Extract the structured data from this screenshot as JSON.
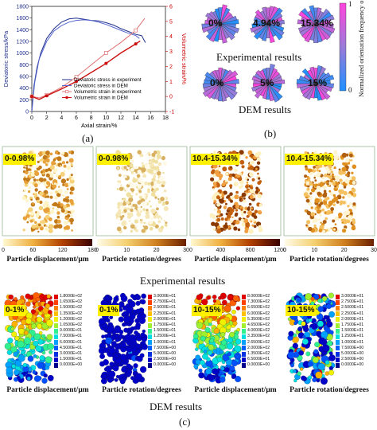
{
  "chart_data": {
    "type": "line",
    "xlabel": "Axial strain/%",
    "ylabel_left": "Deviatoric stress/kPa",
    "ylabel_right": "Volumetric strain/%",
    "xlim": [
      0,
      18
    ],
    "ylim_left": [
      0,
      1800
    ],
    "ylim_right": [
      -1,
      6
    ],
    "x_ticks": [
      "0",
      "2",
      "4",
      "6",
      "8",
      "10",
      "12",
      "14",
      "16",
      "18"
    ],
    "y_left_ticks": [
      "0",
      "200",
      "400",
      "600",
      "800",
      "1000",
      "1200",
      "1400",
      "1600",
      "1800"
    ],
    "y_right_ticks": [
      "-1",
      "0",
      "1",
      "2",
      "3",
      "4",
      "5",
      "6"
    ],
    "series": [
      {
        "name": "Deviatoric stress in experiment",
        "axis": "left",
        "color": "#1f2f8f",
        "points": [
          [
            0,
            0
          ],
          [
            0.3,
            450
          ],
          [
            0.7,
            750
          ],
          [
            1.2,
            1000
          ],
          [
            2,
            1250
          ],
          [
            3,
            1420
          ],
          [
            4,
            1530
          ],
          [
            5,
            1585
          ],
          [
            6,
            1600
          ],
          [
            7,
            1580
          ],
          [
            8,
            1560
          ],
          [
            9,
            1550
          ],
          [
            10,
            1520
          ],
          [
            11,
            1480
          ],
          [
            12,
            1420
          ],
          [
            13,
            1370
          ],
          [
            14,
            1320
          ],
          [
            14.8,
            1300
          ],
          [
            15.3,
            1180
          ]
        ]
      },
      {
        "name": "Deviatoric stress in DEM",
        "axis": "left",
        "color": "#5566cc",
        "points": [
          [
            0,
            0
          ],
          [
            0.4,
            500
          ],
          [
            1,
            900
          ],
          [
            2,
            1200
          ],
          [
            3,
            1380
          ],
          [
            4,
            1470
          ],
          [
            5,
            1530
          ],
          [
            6,
            1560
          ],
          [
            7,
            1570
          ],
          [
            8,
            1560
          ],
          [
            9,
            1530
          ],
          [
            10,
            1490
          ],
          [
            11,
            1440
          ],
          [
            12,
            1390
          ],
          [
            13,
            1340
          ],
          [
            14,
            1300
          ],
          [
            14.5,
            1250
          ]
        ]
      },
      {
        "name": "Volumetric strain in experiment",
        "axis": "right",
        "color": "#e07070",
        "points": [
          [
            0,
            0
          ],
          [
            1,
            -0.1
          ],
          [
            2,
            0.1
          ],
          [
            4,
            0.6
          ],
          [
            6,
            1.3
          ],
          [
            8,
            2.1
          ],
          [
            10,
            2.9
          ],
          [
            12,
            3.6
          ],
          [
            14,
            4.4
          ],
          [
            15.2,
            5.2
          ]
        ]
      },
      {
        "name": "Volumetric strain in DEM",
        "axis": "right",
        "color": "#cc1111",
        "points": [
          [
            0,
            0
          ],
          [
            1,
            -0.2
          ],
          [
            2,
            0.05
          ],
          [
            4,
            0.5
          ],
          [
            6,
            1.0
          ],
          [
            8,
            1.6
          ],
          [
            10,
            2.2
          ],
          [
            12,
            2.9
          ],
          [
            14,
            3.5
          ],
          [
            14.6,
            3.7
          ]
        ]
      }
    ]
  },
  "panel_b": {
    "exp_labels": [
      "0%",
      "4.94%",
      "15.34%"
    ],
    "dem_labels": [
      "0%",
      "5%",
      "15%"
    ],
    "exp_title": "Experimental results",
    "dem_title": "DEM results",
    "colorbar_top": "1",
    "colorbar_bottom": "0",
    "colorbar_label": "Normalized orientation frequency of branch vectors"
  },
  "panel_labels": {
    "a": "(a)",
    "b": "(b)",
    "c": "(c)"
  },
  "exp_row": {
    "tiles": [
      {
        "pct": "0-0.98%"
      },
      {
        "pct": "0-0.98%"
      },
      {
        "pct": "10.4-15.34%"
      },
      {
        "pct": "10.4-15.34%"
      }
    ],
    "bars": [
      {
        "ticks": [
          "0",
          "60",
          "120",
          "180"
        ],
        "label": "Particle displacement/μm"
      },
      {
        "ticks": [
          "0",
          "10",
          "20",
          "30"
        ],
        "label": "Particle rotation/degrees"
      },
      {
        "ticks": [
          "0",
          "400",
          "800",
          "1200"
        ],
        "label": "Particle displacement/μm"
      },
      {
        "ticks": [
          "0",
          "10",
          "20",
          "30"
        ],
        "label": "Particle rotation/degrees"
      }
    ],
    "title": "Experimental results"
  },
  "dem_row": {
    "tiles": [
      {
        "pct": "0-1%",
        "legend": [
          "1.8000E+02",
          "1.6500E+02",
          "1.5000E+02",
          "1.3500E+02",
          "1.2000E+02",
          "1.0500E+02",
          "9.0000E+01",
          "7.5000E+01",
          "6.0000E+01",
          "4.5000E+01",
          "3.0000E+01",
          "1.5000E+01",
          "0.0000E+00"
        ]
      },
      {
        "pct": "0-1%",
        "legend": [
          "3.0000E+01",
          "2.7500E+01",
          "2.5000E+01",
          "2.2500E+01",
          "2.0000E+01",
          "1.7500E+01",
          "1.5000E+01",
          "1.2500E+01",
          "1.0000E+01",
          "7.5000E+00",
          "5.0000E+00",
          "2.5000E+00",
          "0.0000E+00"
        ]
      },
      {
        "pct": "10-15%",
        "legend": [
          "8.0000E+02",
          "7.3000E+02",
          "6.6500E+02",
          "6.0000E+02",
          "5.3500E+02",
          "4.6500E+02",
          "4.0000E+02",
          "3.3500E+02",
          "2.6500E+02",
          "2.0000E+02",
          "1.3500E+02",
          "6.5000E+01",
          "0.0000E+00"
        ]
      },
      {
        "pct": "10-15%",
        "legend": [
          "3.0000E+01",
          "2.7500E+01",
          "2.5000E+01",
          "2.2500E+01",
          "2.0000E+01",
          "1.7500E+01",
          "1.5000E+01",
          "1.2500E+01",
          "1.0000E+01",
          "7.5000E+00",
          "5.0000E+00",
          "2.5000E+00",
          "0.0000E+00"
        ]
      }
    ],
    "labels": [
      "Particle displacement/μm",
      "Particle rotation/degrees",
      "Particle displacement/μm",
      "Particle rotation/degrees"
    ],
    "title": "DEM results"
  },
  "colors": {
    "legend_box": "#ffef00"
  }
}
